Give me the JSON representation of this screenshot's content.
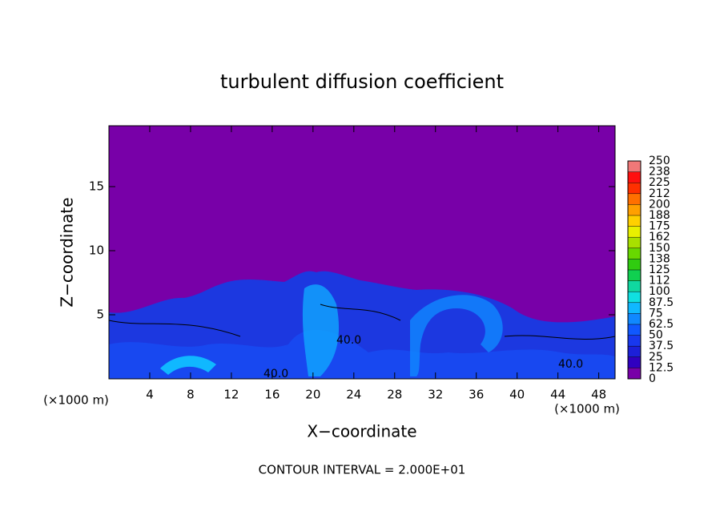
{
  "chart_data": {
    "type": "contour",
    "title": "turbulent diffusion coefficient",
    "x_label": "X−coordinate",
    "y_label": "Z−coordinate",
    "unit_labels": [
      "(×1000 m)",
      "(×1000 m)"
    ],
    "annotation": "CONTOUR INTERVAL = 2.000E+01",
    "contour_labels": [
      "40.0",
      "40.0",
      "40.0"
    ],
    "xlim": [
      0,
      49.6
    ],
    "ylim": [
      0,
      19.75
    ],
    "xticks": [
      4,
      8,
      12,
      16,
      20,
      24,
      28,
      32,
      36,
      40,
      44,
      48
    ],
    "yticks": [
      5,
      10,
      15
    ],
    "colorbar_ticks": [
      0,
      12.5,
      25,
      37.5,
      50,
      62.5,
      75,
      87.5,
      100,
      {
        "value": 112.5,
        "label": "112"
      },
      125,
      {
        "value": 137.5,
        "label": "138"
      },
      150,
      {
        "value": 162.5,
        "label": "162"
      },
      175,
      {
        "value": 187.5,
        "label": "188"
      },
      200,
      {
        "value": 212.5,
        "label": "212"
      },
      225,
      {
        "value": 237.5,
        "label": "238"
      },
      250
    ],
    "colorbar_colors": [
      "#7800a8",
      "#3000c0",
      "#1c20d8",
      "#1838ee",
      "#1058ff",
      "#1088ff",
      "#10b8ff",
      "#10e0e0",
      "#10d8a0",
      "#10d050",
      "#30cc10",
      "#68d800",
      "#a8e000",
      "#e8f000",
      "#ffd000",
      "#ffa000",
      "#ff7000",
      "#ff3000",
      "#ff1010",
      "#f07878"
    ]
  }
}
